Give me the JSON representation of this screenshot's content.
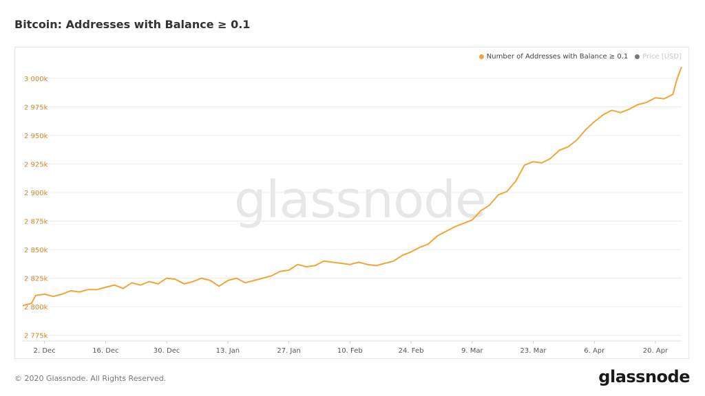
{
  "page": {
    "title": "Bitcoin: Addresses with Balance ≥ 0.1",
    "footer": "© 2020 Glassnode. All Rights Reserved.",
    "brand": "glassnode",
    "watermark": "glassnode"
  },
  "legend": {
    "items": [
      {
        "label": "Number of Addresses with Balance ≥ 0.1",
        "color": "#f2a534",
        "active": true
      },
      {
        "label": "Price [USD]",
        "color": "#777777",
        "active": false
      }
    ]
  },
  "chart_data": {
    "type": "line",
    "title": "Bitcoin: Addresses with Balance ≥ 0.1",
    "xlabel": "",
    "ylabel": "",
    "grid": true,
    "legend_position": "top-right",
    "x_ticks": [
      "2. Dec",
      "16. Dec",
      "30. Dec",
      "13. Jan",
      "27. Jan",
      "10. Feb",
      "24. Feb",
      "9. Mar",
      "23. Mar",
      "6. Apr",
      "20. Apr"
    ],
    "y_ticks": [
      "2 775k",
      "2 800k",
      "2 825k",
      "2 850k",
      "2 875k",
      "2 900k",
      "2 925k",
      "2 950k",
      "2 975k",
      "3 000k"
    ],
    "ylim": [
      2770,
      3012
    ],
    "x_range": [
      "2019-11-27",
      "2020-04-26"
    ],
    "series": [
      {
        "name": "Number of Addresses with Balance ≥ 0.1",
        "color": "#f2a534",
        "points": [
          [
            "2019-11-27",
            2801
          ],
          [
            "2019-11-29",
            2803
          ],
          [
            "2019-11-30",
            2810
          ],
          [
            "2019-12-02",
            2811
          ],
          [
            "2019-12-04",
            2809
          ],
          [
            "2019-12-06",
            2811
          ],
          [
            "2019-12-08",
            2814
          ],
          [
            "2019-12-10",
            2813
          ],
          [
            "2019-12-12",
            2815
          ],
          [
            "2019-12-14",
            2815
          ],
          [
            "2019-12-16",
            2817
          ],
          [
            "2019-12-18",
            2819
          ],
          [
            "2019-12-20",
            2816
          ],
          [
            "2019-12-22",
            2821
          ],
          [
            "2019-12-24",
            2819
          ],
          [
            "2019-12-26",
            2822
          ],
          [
            "2019-12-28",
            2820
          ],
          [
            "2019-12-30",
            2825
          ],
          [
            "2020-01-01",
            2824
          ],
          [
            "2020-01-03",
            2820
          ],
          [
            "2020-01-05",
            2822
          ],
          [
            "2020-01-07",
            2825
          ],
          [
            "2020-01-09",
            2823
          ],
          [
            "2020-01-11",
            2818
          ],
          [
            "2020-01-13",
            2823
          ],
          [
            "2020-01-15",
            2825
          ],
          [
            "2020-01-17",
            2821
          ],
          [
            "2020-01-19",
            2823
          ],
          [
            "2020-01-21",
            2825
          ],
          [
            "2020-01-23",
            2827
          ],
          [
            "2020-01-25",
            2831
          ],
          [
            "2020-01-27",
            2832
          ],
          [
            "2020-01-29",
            2837
          ],
          [
            "2020-01-31",
            2835
          ],
          [
            "2020-02-02",
            2836
          ],
          [
            "2020-02-04",
            2840
          ],
          [
            "2020-02-06",
            2839
          ],
          [
            "2020-02-08",
            2838
          ],
          [
            "2020-02-10",
            2837
          ],
          [
            "2020-02-12",
            2839
          ],
          [
            "2020-02-14",
            2837
          ],
          [
            "2020-02-16",
            2836
          ],
          [
            "2020-02-18",
            2838
          ],
          [
            "2020-02-20",
            2840
          ],
          [
            "2020-02-22",
            2845
          ],
          [
            "2020-02-24",
            2848
          ],
          [
            "2020-02-26",
            2852
          ],
          [
            "2020-02-28",
            2855
          ],
          [
            "2020-03-01",
            2862
          ],
          [
            "2020-03-03",
            2866
          ],
          [
            "2020-03-05",
            2870
          ],
          [
            "2020-03-07",
            2873
          ],
          [
            "2020-03-09",
            2876
          ],
          [
            "2020-03-11",
            2884
          ],
          [
            "2020-03-13",
            2889
          ],
          [
            "2020-03-15",
            2898
          ],
          [
            "2020-03-17",
            2901
          ],
          [
            "2020-03-19",
            2910
          ],
          [
            "2020-03-21",
            2924
          ],
          [
            "2020-03-23",
            2927
          ],
          [
            "2020-03-25",
            2926
          ],
          [
            "2020-03-27",
            2930
          ],
          [
            "2020-03-29",
            2937
          ],
          [
            "2020-03-31",
            2940
          ],
          [
            "2020-04-02",
            2946
          ],
          [
            "2020-04-04",
            2955
          ],
          [
            "2020-04-06",
            2962
          ],
          [
            "2020-04-08",
            2968
          ],
          [
            "2020-04-10",
            2972
          ],
          [
            "2020-04-12",
            2970
          ],
          [
            "2020-04-14",
            2973
          ],
          [
            "2020-04-16",
            2977
          ],
          [
            "2020-04-18",
            2979
          ],
          [
            "2020-04-20",
            2983
          ],
          [
            "2020-04-22",
            2982
          ],
          [
            "2020-04-24",
            2986
          ],
          [
            "2020-04-25",
            3000
          ],
          [
            "2020-04-26",
            3010
          ]
        ]
      }
    ]
  }
}
